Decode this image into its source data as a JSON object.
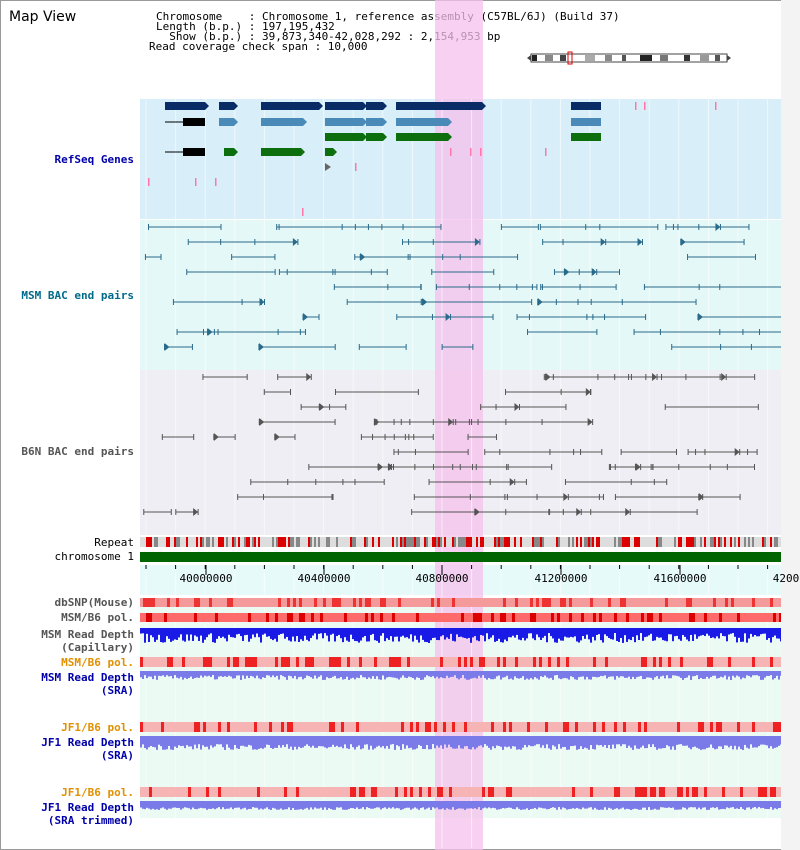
{
  "page": {
    "title": "Map View"
  },
  "info": {
    "line1": "Chromosome    : Chromosome 1, reference assembly (C57BL/6J) (Build 37)",
    "line2": "Length (b.p.) : 197,195,432",
    "line3": "  Show (b.p.) : 39,873,340-42,028,292 : 2,154,953 bp",
    "line4": "Read coverage check span : 10,000"
  },
  "tracks": {
    "refseq": "RefSeq Genes",
    "msm_bac": "MSM BAC end pairs",
    "b6n_bac": "B6N BAC end pairs",
    "repeat": "Repeat",
    "chromosome": "chromosome 1",
    "dbsnp": "dbSNP(Mouse)",
    "msm_pol": "MSM/B6 pol.",
    "msm_depth_cap_1": "MSM Read Depth",
    "msm_depth_cap_2": "(Capillary)",
    "msm_pol_sra": "MSM/B6 pol.",
    "msm_depth_sra_1": "MSM Read Depth",
    "msm_depth_sra_2": "(SRA)",
    "jf1_pol": "JF1/B6 pol.",
    "jf1_depth_1": "JF1 Read Depth",
    "jf1_depth_2": "(SRA)",
    "jf1_pol_trim": "JF1/B6 pol.",
    "jf1_trim_1": "JF1 Read Depth",
    "jf1_trim_2": "(SRA trimmed)"
  },
  "axis": {
    "ticks": [
      "40000000",
      "40400000",
      "40800000",
      "41200000",
      "41600000",
      "4200"
    ]
  },
  "colors": {
    "highlight": "#f5c0ec",
    "refseq_bg": "#d8eef8",
    "msm_bg": "#e4f8f8",
    "b6n_bg": "#eeeef4",
    "gene_dark": "#0a2c66",
    "gene_mid": "#4a8ab8",
    "gene_green": "#0c6e0c",
    "msm_line": "#2a6a8a",
    "b6n_line": "#555555",
    "chromosome_green": "#006400",
    "depth_blue": "#1a1ae6",
    "depth_light": "#7a7ae8",
    "label_blue": "#0000aa",
    "label_orange": "#e09000",
    "label_teal": "#006a8a"
  }
}
